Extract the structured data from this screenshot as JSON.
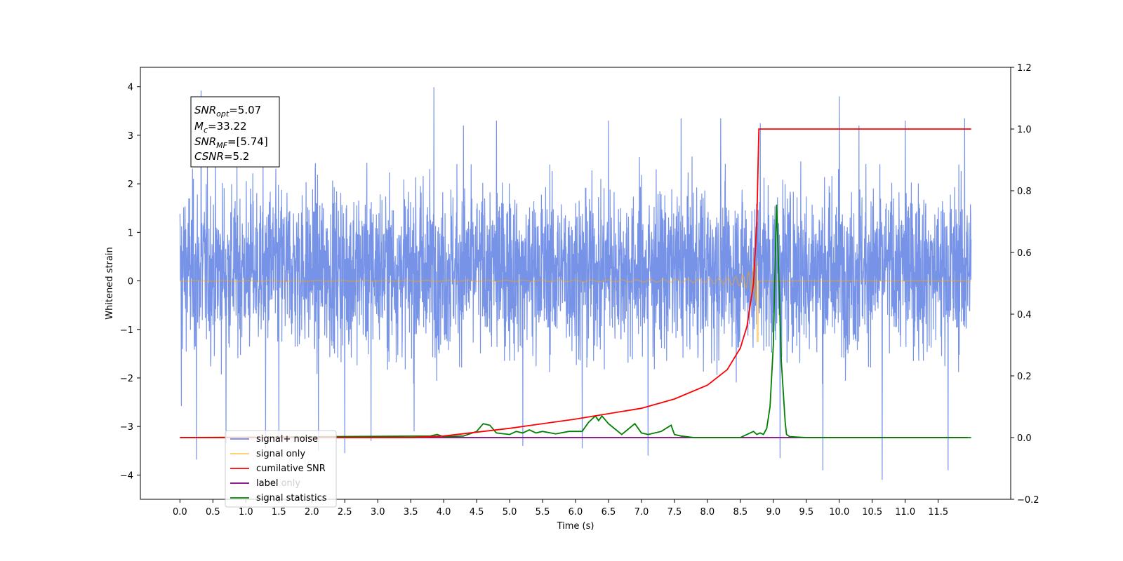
{
  "chart_data": {
    "type": "line",
    "title": "",
    "xlabel": "Time (s)",
    "ylabel": "Whitened strain",
    "xlim": [
      -0.6,
      12.6
    ],
    "ylim": [
      -4.5,
      4.4
    ],
    "y2lim": [
      -0.2,
      1.2
    ],
    "grid": false,
    "legend_placement": "lower-left",
    "x_ticks": [
      "0.0",
      "0.5",
      "1.0",
      "1.5",
      "2.0",
      "2.5",
      "3.0",
      "3.5",
      "4.0",
      "4.5",
      "5.0",
      "5.5",
      "6.0",
      "6.5",
      "7.0",
      "7.5",
      "8.0",
      "8.5",
      "9.0",
      "9.5",
      "10.0",
      "10.5",
      "11.0",
      "11.5"
    ],
    "y_ticks": [
      "−4",
      "−3",
      "−2",
      "−1",
      "0",
      "1",
      "2",
      "3",
      "4"
    ],
    "y2_ticks": [
      "−0.2",
      "0.0",
      "0.2",
      "0.4",
      "0.6",
      "0.8",
      "1.0",
      "1.2"
    ],
    "annotation": [
      {
        "name": "SNR",
        "sub": "opt",
        "value": "=5.07"
      },
      {
        "name": "M",
        "sub": "c",
        "value": "=33.22"
      },
      {
        "name": "SNR",
        "sub": "MF",
        "value": "=[5.74]"
      },
      {
        "name": "CSNR",
        "sub": "",
        "value": "=5.2"
      }
    ],
    "series": [
      {
        "name": "signal+ noise",
        "color": "#6b8ae6",
        "axis": "left",
        "x_range": [
          0.0,
          12.0
        ],
        "typical_range": [
          -2.2,
          2.6
        ],
        "spikes": [
          [
            0.02,
            1.55
          ],
          [
            0.02,
            -2.58
          ],
          [
            0.32,
            3.92
          ],
          [
            0.25,
            -3.68
          ],
          [
            0.7,
            -3.35
          ],
          [
            1.3,
            -3.45
          ],
          [
            1.5,
            -3.3
          ],
          [
            2.1,
            -3.5
          ],
          [
            2.5,
            -3.55
          ],
          [
            2.9,
            -3.3
          ],
          [
            3.55,
            -3.1
          ],
          [
            3.85,
            3.99
          ],
          [
            4.3,
            3.2
          ],
          [
            4.8,
            3.3
          ],
          [
            5.2,
            -3.4
          ],
          [
            6.1,
            -3.45
          ],
          [
            6.5,
            3.3
          ],
          [
            7.1,
            -3.6
          ],
          [
            7.6,
            3.35
          ],
          [
            8.2,
            3.35
          ],
          [
            8.8,
            3.25
          ],
          [
            9.1,
            -3.65
          ],
          [
            9.75,
            -3.9
          ],
          [
            10.0,
            3.8
          ],
          [
            10.3,
            3.2
          ],
          [
            10.65,
            -4.1
          ],
          [
            11.0,
            3.3
          ],
          [
            11.65,
            -3.9
          ],
          [
            11.9,
            3.35
          ]
        ]
      },
      {
        "name": "signal only",
        "color": "#ffa500",
        "axis": "left",
        "chirp": {
          "start": 0.0,
          "merger": 8.77,
          "end": 12.0,
          "peak_amplitude": 0.9,
          "min_value": -1.25
        }
      },
      {
        "name": "cumilative SNR",
        "color": "#ff0000",
        "axis": "right",
        "x": [
          0.0,
          3.5,
          4.0,
          5.0,
          6.0,
          7.0,
          7.5,
          8.0,
          8.3,
          8.5,
          8.6,
          8.7,
          8.75,
          8.78,
          9.0,
          12.0
        ],
        "y": [
          0.0,
          0.0,
          0.005,
          0.03,
          0.06,
          0.095,
          0.125,
          0.17,
          0.22,
          0.29,
          0.36,
          0.5,
          0.7,
          1.0,
          1.0,
          1.0
        ]
      },
      {
        "name": "label",
        "color": "#800080",
        "axis": "right",
        "x": [
          0.0,
          11.95
        ],
        "y": [
          0.0,
          0.0
        ]
      },
      {
        "name": "label only",
        "color": "#d3d3d3",
        "axis": "right",
        "x": [],
        "y": []
      },
      {
        "name": "signal statistics",
        "color": "#008000",
        "axis": "right",
        "x": [
          0.0,
          3.8,
          3.9,
          4.0,
          4.3,
          4.5,
          4.6,
          4.7,
          4.8,
          5.0,
          5.1,
          5.2,
          5.3,
          5.4,
          5.5,
          5.7,
          5.9,
          6.1,
          6.2,
          6.3,
          6.35,
          6.4,
          6.5,
          6.7,
          6.9,
          7.0,
          7.1,
          7.3,
          7.45,
          7.5,
          7.6,
          7.8,
          8.5,
          8.7,
          8.75,
          8.8,
          8.85,
          8.9,
          8.95,
          9.0,
          9.02,
          9.05,
          9.08,
          9.12,
          9.18,
          9.2,
          9.25,
          9.5,
          12.0
        ],
        "y": [
          0.0,
          0.005,
          0.01,
          0.003,
          0.005,
          0.02,
          0.045,
          0.04,
          0.015,
          0.01,
          0.02,
          0.015,
          0.025,
          0.015,
          0.02,
          0.012,
          0.02,
          0.02,
          0.05,
          0.07,
          0.055,
          0.07,
          0.045,
          0.01,
          0.045,
          0.015,
          0.01,
          0.02,
          0.04,
          0.01,
          0.005,
          0.0,
          0.0,
          0.02,
          0.01,
          0.015,
          0.01,
          0.03,
          0.1,
          0.3,
          0.5,
          0.755,
          0.55,
          0.25,
          0.05,
          0.01,
          0.003,
          0.0,
          0.0
        ]
      }
    ]
  }
}
